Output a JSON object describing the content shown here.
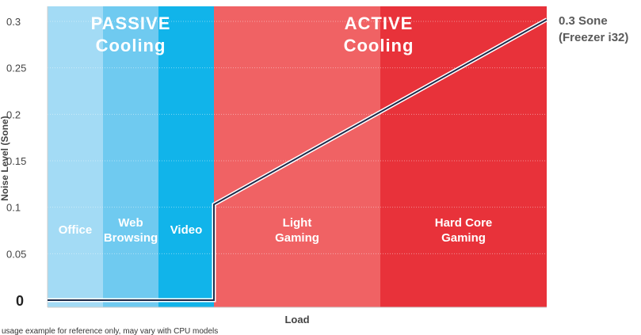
{
  "chart_data": {
    "type": "line",
    "xlabel": "Load",
    "ylabel": "Noise Level (Sone)",
    "ylim": [
      0,
      0.32
    ],
    "yticks": [
      "0",
      "0.05",
      "0.1",
      "0.15",
      "0.2",
      "0.25",
      "0.3"
    ],
    "grid": true,
    "modes": [
      {
        "title_line1": "PASSIVE",
        "title_line2": "Cooling"
      },
      {
        "title_line1": "ACTIVE",
        "title_line2": "Cooling"
      }
    ],
    "zones": [
      {
        "lines": [
          "Office"
        ],
        "color": "#a3dbf5"
      },
      {
        "lines": [
          "Web",
          "Browsing"
        ],
        "color": "#6fcaf0"
      },
      {
        "lines": [
          "Video"
        ],
        "color": "#11b4ea"
      },
      {
        "lines": [
          "Light",
          "Gaming"
        ],
        "color": "#f06264"
      },
      {
        "lines": [
          "Hard Core",
          "Gaming"
        ],
        "color": "#e8323a"
      }
    ],
    "series": [
      {
        "values": [
          [
            0,
            0.0
          ],
          [
            3,
            0.0
          ],
          [
            3,
            0.103
          ],
          [
            6,
            0.302
          ]
        ]
      }
    ],
    "annotation": {
      "line1": "0.3 Sone",
      "line2": "(Freezer i32)"
    },
    "footnote": "usage example for reference only, may vary with CPU models",
    "line_color": "#1c2a4a"
  }
}
